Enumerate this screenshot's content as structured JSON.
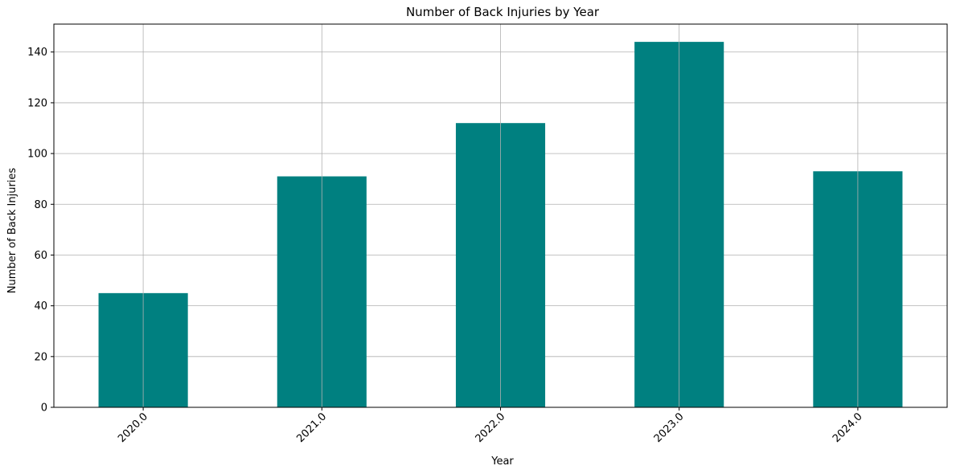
{
  "chart_data": {
    "type": "bar",
    "title": "Number of Back Injuries by Year",
    "xlabel": "Year",
    "ylabel": "Number of Back Injuries",
    "categories": [
      "2020.0",
      "2021.0",
      "2022.0",
      "2023.0",
      "2024.0"
    ],
    "values": [
      45,
      91,
      112,
      144,
      93
    ],
    "ylim": [
      0,
      151
    ],
    "yticks": [
      "0",
      "20",
      "40",
      "60",
      "80",
      "100",
      "120",
      "140"
    ],
    "grid": true,
    "bar_color": "#008080",
    "grid_color": "#b0b0b0"
  }
}
